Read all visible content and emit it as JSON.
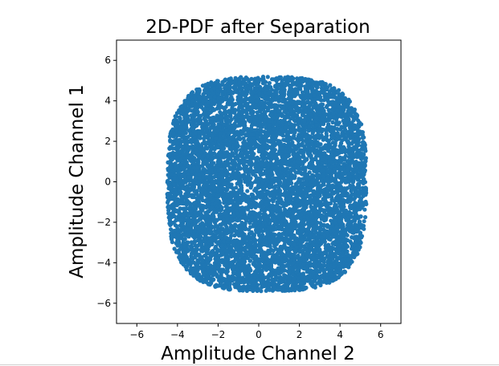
{
  "chart_data": {
    "type": "scatter",
    "title": "2D-PDF after Separation",
    "xlabel": "Amplitude Channel 2",
    "ylabel": "Amplitude Channel 1",
    "xlim": [
      -7,
      7
    ],
    "ylim": [
      -7,
      7
    ],
    "xticks": [
      -6,
      -4,
      -2,
      0,
      2,
      4,
      6
    ],
    "yticks": [
      -6,
      -4,
      -2,
      0,
      2,
      4,
      6
    ],
    "tick_labels_x": [
      "−6",
      "−4",
      "−2",
      "0",
      "2",
      "4",
      "6"
    ],
    "tick_labels_y": [
      "−6",
      "−4",
      "−2",
      "0",
      "2",
      "4",
      "6"
    ],
    "grid": false,
    "legend": "none",
    "marker_color": "#1f77b4",
    "distribution": {
      "description_values": "dense point cloud of separated samples, roughly uniform within a rounded square",
      "x_range": [
        -4.5,
        5.3
      ],
      "y_range": [
        -5.4,
        5.2
      ],
      "sample_count": 8000
    }
  }
}
